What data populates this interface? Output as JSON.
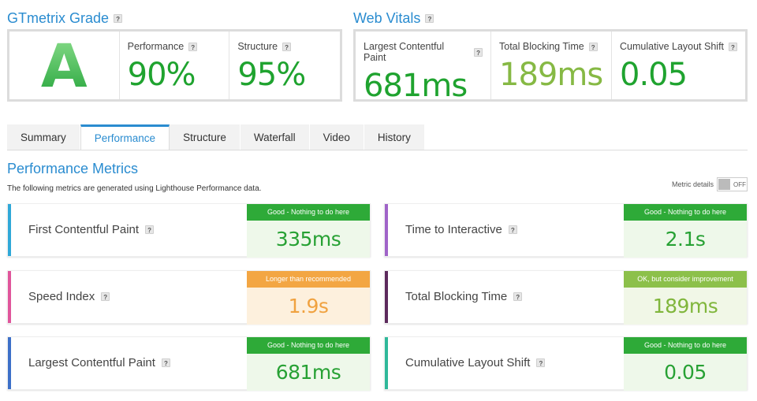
{
  "grade": {
    "title": "GTmetrix Grade",
    "letter": "A",
    "performance_label": "Performance",
    "performance_value": "90%",
    "structure_label": "Structure",
    "structure_value": "95%"
  },
  "vitals": {
    "title": "Web Vitals",
    "items": [
      {
        "label": "Largest Contentful Paint",
        "value": "681ms",
        "color": "#1fa32f"
      },
      {
        "label": "Total Blocking Time",
        "value": "189ms",
        "color": "#86b944"
      },
      {
        "label": "Cumulative Layout Shift",
        "value": "0.05",
        "color": "#1fa32f"
      }
    ]
  },
  "tabs": [
    "Summary",
    "Performance",
    "Structure",
    "Waterfall",
    "Video",
    "History"
  ],
  "active_tab": "Performance",
  "performance": {
    "title": "Performance Metrics",
    "description": "The following metrics are generated using Lighthouse Performance data.",
    "metric_details_label": "Metric details",
    "toggle_state": "OFF"
  },
  "help_glyph": "?",
  "metrics": [
    {
      "name": "First Contentful Paint",
      "status": "Good - Nothing to do here",
      "value": "335ms",
      "level": "good",
      "bar_color": "#2fa8d8"
    },
    {
      "name": "Time to Interactive",
      "status": "Good - Nothing to do here",
      "value": "2.1s",
      "level": "good",
      "bar_color": "#a064c8"
    },
    {
      "name": "Speed Index",
      "status": "Longer than recommended",
      "value": "1.9s",
      "level": "warn",
      "bar_color": "#e0559b"
    },
    {
      "name": "Total Blocking Time",
      "status": "OK, but consider improvement",
      "value": "189ms",
      "level": "ok",
      "bar_color": "#5c2a5c"
    },
    {
      "name": "Largest Contentful Paint",
      "status": "Good - Nothing to do here",
      "value": "681ms",
      "level": "good",
      "bar_color": "#3c6fc8"
    },
    {
      "name": "Cumulative Layout Shift",
      "status": "Good - Nothing to do here",
      "value": "0.05",
      "level": "good",
      "bar_color": "#2fb89a"
    }
  ]
}
